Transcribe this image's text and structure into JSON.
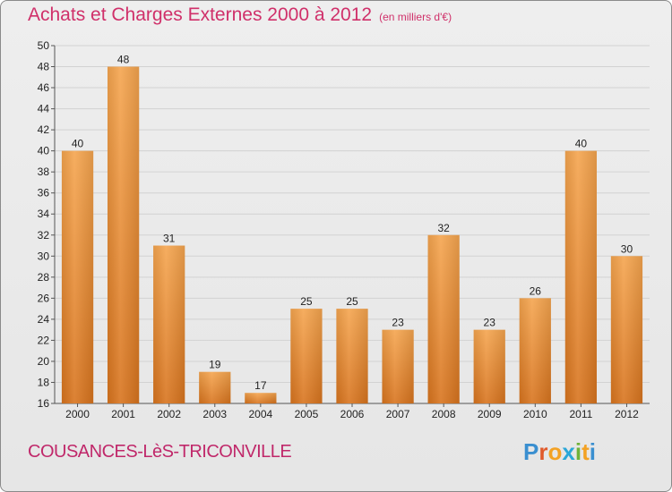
{
  "header": {
    "title": "Achats et Charges Externes 2000 à 2012",
    "unit": "(en milliers d'€)"
  },
  "footer": {
    "commune": "COUSANCES-LèS-TRICONVILLE",
    "brand": "Proxiti"
  },
  "colors": {
    "title": "#d0306a",
    "bar_top": "#f5a54f",
    "bar_bottom": "#d8741e"
  },
  "chart_data": {
    "type": "bar",
    "title": "Achats et Charges Externes 2000 à 2012",
    "subtitle": "(en milliers d'€)",
    "xlabel": "",
    "ylabel": "",
    "categories": [
      "2000",
      "2001",
      "2002",
      "2003",
      "2004",
      "2005",
      "2006",
      "2007",
      "2008",
      "2009",
      "2010",
      "2011",
      "2012"
    ],
    "values": [
      40,
      48,
      31,
      19,
      17,
      25,
      25,
      23,
      32,
      23,
      26,
      40,
      30
    ],
    "ylim": [
      16,
      50
    ],
    "yticks": [
      16,
      18,
      20,
      22,
      24,
      26,
      28,
      30,
      32,
      34,
      36,
      38,
      40,
      42,
      44,
      46,
      48,
      50
    ],
    "grid": true,
    "legend": "none"
  }
}
